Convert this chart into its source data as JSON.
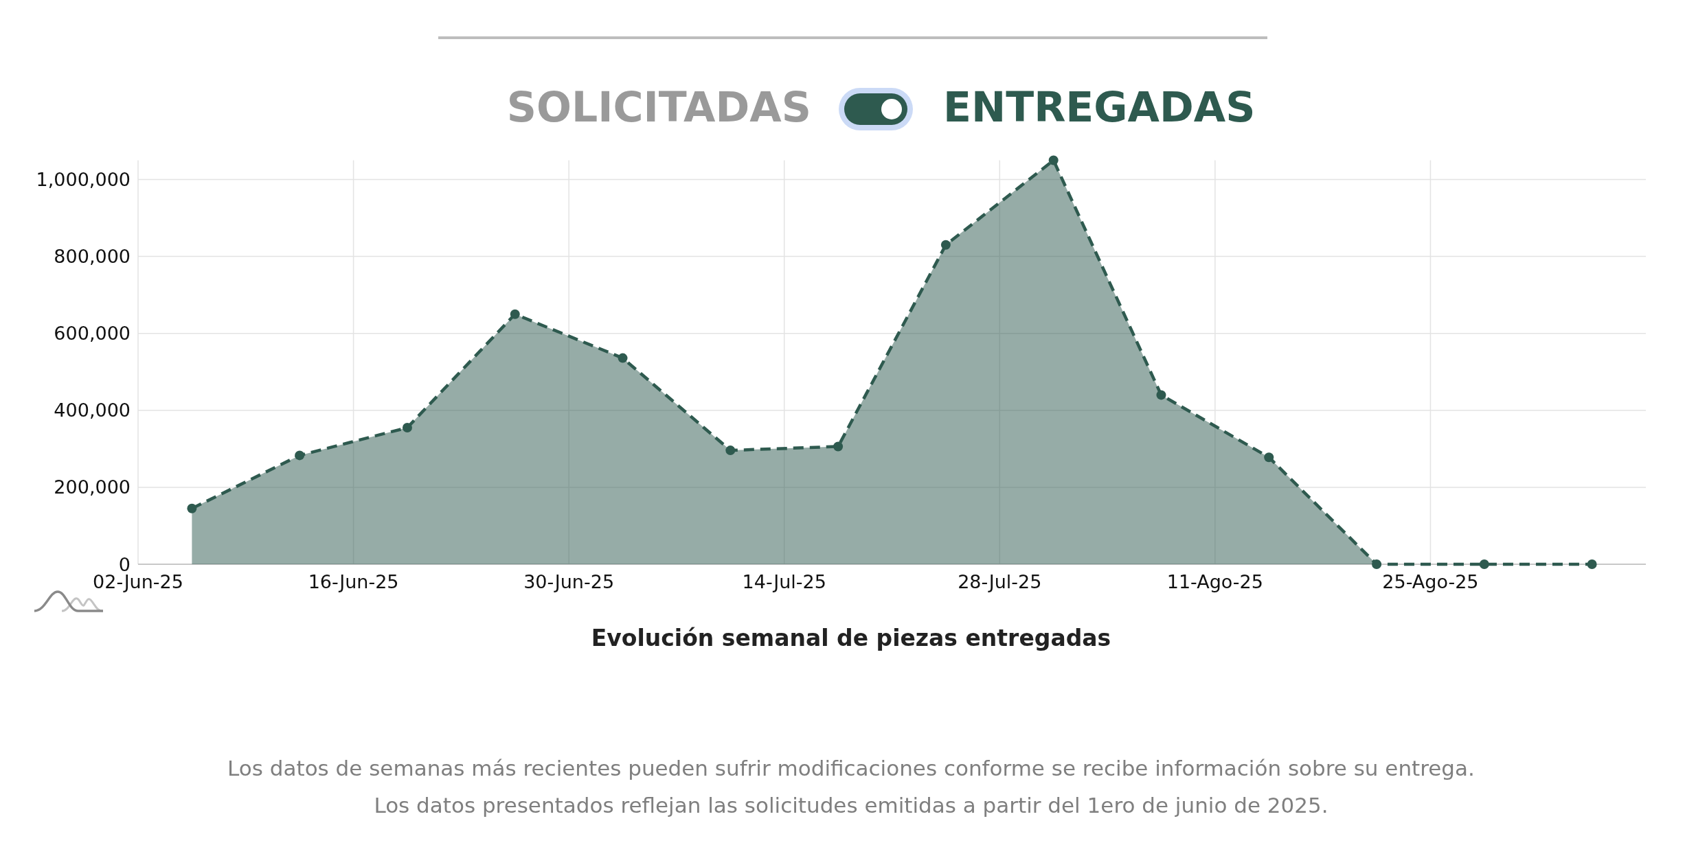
{
  "chart_data": {
    "type": "area",
    "title": "Evolución semanal de piezas entregadas",
    "annotations": [
      "SOLICITADAS",
      "ENTREGADAS",
      "Los datos de semanas más recientes pueden sufrir modificaciones conforme se recibe información sobre su entrega.",
      "Los datos presentados reflejan las solicitudes emitidas a partir del 1ero de junio de 2025."
    ],
    "x": [
      "2025-06-05T12:00",
      "2025-06-12T12:00",
      "2025-06-19T12:00",
      "2025-06-26T12:00",
      "2025-07-03T12:00",
      "2025-07-10T12:00",
      "2025-07-17T12:00",
      "2025-07-24T12:00",
      "2025-07-31T12:00",
      "2025-08-07T12:00",
      "2025-08-14T12:00",
      "2025-08-21T12:00",
      "2025-08-28T12:00",
      "2025-09-04T12:00"
    ],
    "series": [
      {
        "color": "#2e5a4f",
        "values": [
          145000,
          283000,
          355000,
          650000,
          536000,
          296000,
          306000,
          830000,
          1050000,
          440000,
          278000,
          0,
          0,
          0
        ]
      }
    ],
    "xlim": [
      "2025-06-02",
      "2025-09-08"
    ],
    "xticks": [
      {
        "value": "2025-06-02",
        "label": "02-Jun-25"
      },
      {
        "value": "2025-06-16",
        "label": "16-Jun-25"
      },
      {
        "value": "2025-06-30",
        "label": "30-Jun-25"
      },
      {
        "value": "2025-07-14",
        "label": "14-Jul-25"
      },
      {
        "value": "2025-07-28",
        "label": "28-Jul-25"
      },
      {
        "value": "2025-08-11",
        "label": "11-Ago-25"
      },
      {
        "value": "2025-08-25",
        "label": "25-Ago-25"
      }
    ],
    "ylim": [
      0,
      1050000
    ],
    "yticks": [
      0,
      {
        "value": 200000,
        "label": "200,000"
      },
      {
        "value": 400000,
        "label": "400,000"
      },
      {
        "value": 600000,
        "label": "600,000"
      },
      {
        "value": 800000,
        "label": "800,000"
      },
      {
        "value": 1000000,
        "label": "1,000,000"
      }
    ],
    "grid": true,
    "marker": "circle",
    "line_style": "dashed"
  }
}
